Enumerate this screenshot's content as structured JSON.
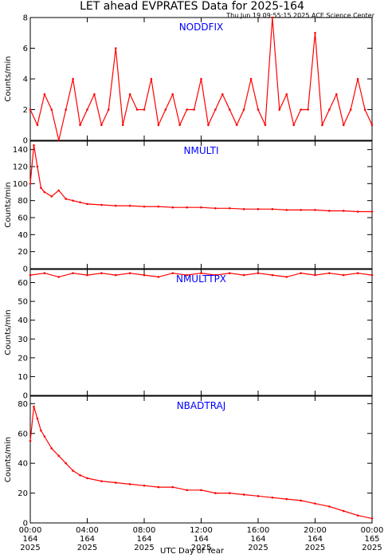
{
  "header": {
    "title": "LET ahead EVPRATES Data for 2025-164",
    "timestamp": "Thu Jun 19 09:55:15 2025 ACE Science Center"
  },
  "xaxis": {
    "label": "UTC Day of Year",
    "ticks": [
      {
        "time": "00:00",
        "doy": "164",
        "year": "2025"
      },
      {
        "time": "04:00",
        "doy": "164",
        "year": "2025"
      },
      {
        "time": "08:00",
        "doy": "164",
        "year": "2025"
      },
      {
        "time": "12:00",
        "doy": "164",
        "year": "2025"
      },
      {
        "time": "16:00",
        "doy": "164",
        "year": "2025"
      },
      {
        "time": "20:00",
        "doy": "164",
        "year": "2025"
      },
      {
        "time": "00:00",
        "doy": "165",
        "year": "2025"
      }
    ]
  },
  "colors": {
    "series": "#ff0000",
    "panel_title": "#0000ff",
    "axes": "#000000"
  },
  "chart_data": [
    {
      "type": "line",
      "title": "NODDFIX",
      "ylabel": "Counts/min",
      "xlim": [
        0,
        24
      ],
      "ylim": [
        0,
        8
      ],
      "yticks": [
        0,
        2,
        4,
        6,
        8
      ],
      "series": [
        {
          "x": [
            0,
            0.5,
            1,
            1.5,
            2,
            2.5,
            3,
            3.5,
            4,
            4.5,
            5,
            5.5,
            6,
            6.5,
            7,
            7.5,
            8,
            8.5,
            9,
            9.5,
            10,
            10.5,
            11,
            11.5,
            12,
            12.5,
            13,
            13.5,
            14,
            14.5,
            15,
            15.5,
            16,
            16.5,
            17,
            17.5,
            18,
            18.5,
            19,
            19.5,
            20,
            20.5,
            21,
            21.5,
            22,
            22.5,
            23,
            23.5,
            24
          ],
          "values": [
            2,
            1,
            3,
            2,
            0,
            2,
            4,
            1,
            2,
            3,
            1,
            2,
            6,
            1,
            3,
            2,
            2,
            4,
            1,
            2,
            3,
            1,
            2,
            2,
            4,
            1,
            2,
            3,
            2,
            1,
            2,
            4,
            2,
            1,
            8,
            2,
            3,
            1,
            2,
            2,
            7,
            1,
            2,
            3,
            1,
            2,
            4,
            2,
            1
          ]
        }
      ]
    },
    {
      "type": "line",
      "title": "NMULTI",
      "ylabel": "Counts/min",
      "xlim": [
        0,
        24
      ],
      "ylim": [
        0,
        150
      ],
      "yticks": [
        0,
        20,
        40,
        60,
        80,
        100,
        120,
        140
      ],
      "series": [
        {
          "x": [
            0,
            0.25,
            0.5,
            0.75,
            1,
            1.5,
            2,
            2.5,
            3,
            3.5,
            4,
            5,
            6,
            7,
            8,
            9,
            10,
            11,
            12,
            13,
            14,
            15,
            16,
            17,
            18,
            19,
            20,
            21,
            22,
            23,
            24
          ],
          "values": [
            100,
            145,
            120,
            95,
            90,
            85,
            92,
            82,
            80,
            78,
            76,
            75,
            74,
            74,
            73,
            73,
            72,
            72,
            72,
            71,
            71,
            70,
            70,
            70,
            69,
            69,
            69,
            68,
            68,
            67,
            67
          ]
        }
      ]
    },
    {
      "type": "line",
      "title": "NMULTTPX",
      "ylabel": "Counts/min",
      "xlim": [
        0,
        24
      ],
      "ylim": [
        0,
        67
      ],
      "yticks": [
        0,
        10,
        20,
        30,
        40,
        50,
        60
      ],
      "series": [
        {
          "x": [
            0,
            1,
            2,
            3,
            4,
            5,
            6,
            7,
            8,
            9,
            10,
            11,
            12,
            13,
            14,
            15,
            16,
            17,
            18,
            19,
            20,
            21,
            22,
            23,
            24
          ],
          "values": [
            64,
            65,
            63,
            65,
            64,
            65,
            64,
            65,
            64,
            63,
            65,
            64,
            65,
            64,
            65,
            64,
            65,
            64,
            63,
            65,
            64,
            65,
            64,
            65,
            64
          ]
        }
      ]
    },
    {
      "type": "line",
      "title": "NBADTRAJ",
      "ylabel": "Counts/min",
      "xlim": [
        0,
        24
      ],
      "ylim": [
        0,
        85
      ],
      "yticks": [
        0,
        20,
        40,
        60,
        80
      ],
      "series": [
        {
          "x": [
            0,
            0.25,
            0.5,
            0.75,
            1,
            1.5,
            2,
            2.5,
            3,
            3.5,
            4,
            5,
            6,
            7,
            8,
            9,
            10,
            11,
            12,
            13,
            14,
            15,
            16,
            17,
            18,
            19,
            20,
            21,
            22,
            23,
            24
          ],
          "values": [
            55,
            78,
            70,
            62,
            58,
            50,
            45,
            40,
            35,
            32,
            30,
            28,
            27,
            26,
            25,
            24,
            24,
            22,
            22,
            20,
            20,
            19,
            18,
            17,
            16,
            15,
            13,
            11,
            8,
            5,
            3
          ]
        }
      ]
    }
  ]
}
